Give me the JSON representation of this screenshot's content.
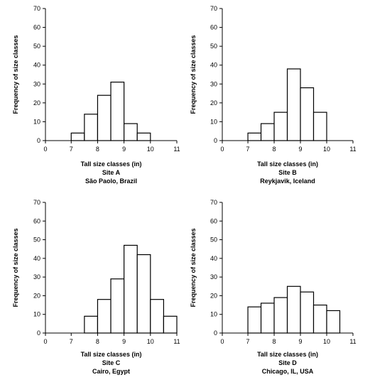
{
  "chart_data": [
    {
      "type": "bar",
      "xlabel": "Tall size classes (in)",
      "ylabel": "Frequency of size classes",
      "site": "Site A",
      "location": "São Paolo, Brazil",
      "xlim": [
        0,
        11
      ],
      "ylim": [
        0,
        70
      ],
      "xticks": [
        0,
        7,
        8,
        9,
        10,
        11
      ],
      "yticks": [
        0,
        10,
        20,
        30,
        40,
        50,
        60,
        70
      ],
      "bin_width": 0.5,
      "bins": [
        {
          "x0": 7.0,
          "value": 4
        },
        {
          "x0": 7.5,
          "value": 14
        },
        {
          "x0": 8.0,
          "value": 24
        },
        {
          "x0": 8.5,
          "value": 31
        },
        {
          "x0": 9.0,
          "value": 9
        },
        {
          "x0": 9.5,
          "value": 4
        }
      ]
    },
    {
      "type": "bar",
      "xlabel": "Tall size classes (in)",
      "ylabel": "Frequency of size classes",
      "site": "Site B",
      "location": "Reykjavik, Iceland",
      "xlim": [
        0,
        11
      ],
      "ylim": [
        0,
        70
      ],
      "xticks": [
        0,
        7,
        8,
        9,
        10,
        11
      ],
      "yticks": [
        0,
        10,
        20,
        30,
        40,
        50,
        60,
        70
      ],
      "bin_width": 0.5,
      "bins": [
        {
          "x0": 7.0,
          "value": 4
        },
        {
          "x0": 7.5,
          "value": 9
        },
        {
          "x0": 8.0,
          "value": 15
        },
        {
          "x0": 8.5,
          "value": 38
        },
        {
          "x0": 9.0,
          "value": 28
        },
        {
          "x0": 9.5,
          "value": 15
        }
      ]
    },
    {
      "type": "bar",
      "xlabel": "Tall size classes (in)",
      "ylabel": "Frequency of size classes",
      "site": "Site C",
      "location": "Cairo, Egypt",
      "xlim": [
        0,
        11
      ],
      "ylim": [
        0,
        70
      ],
      "xticks": [
        0,
        7,
        8,
        9,
        10,
        11
      ],
      "yticks": [
        0,
        10,
        20,
        30,
        40,
        50,
        60,
        70
      ],
      "bin_width": 0.5,
      "bins": [
        {
          "x0": 7.5,
          "value": 9
        },
        {
          "x0": 8.0,
          "value": 18
        },
        {
          "x0": 8.5,
          "value": 29
        },
        {
          "x0": 9.0,
          "value": 47
        },
        {
          "x0": 9.5,
          "value": 42
        },
        {
          "x0": 10.0,
          "value": 18
        },
        {
          "x0": 10.5,
          "value": 9
        }
      ]
    },
    {
      "type": "bar",
      "xlabel": "Tall size classes (in)",
      "ylabel": "Frequency of size classes",
      "site": "Site D",
      "location": "Chicago, IL, USA",
      "xlim": [
        0,
        11
      ],
      "ylim": [
        0,
        70
      ],
      "xticks": [
        0,
        7,
        8,
        9,
        10,
        11
      ],
      "yticks": [
        0,
        10,
        20,
        30,
        40,
        50,
        60,
        70
      ],
      "bin_width": 0.5,
      "bins": [
        {
          "x0": 7.0,
          "value": 14
        },
        {
          "x0": 7.5,
          "value": 16
        },
        {
          "x0": 8.0,
          "value": 19
        },
        {
          "x0": 8.5,
          "value": 25
        },
        {
          "x0": 9.0,
          "value": 22
        },
        {
          "x0": 9.5,
          "value": 15
        },
        {
          "x0": 10.0,
          "value": 12
        }
      ]
    }
  ]
}
